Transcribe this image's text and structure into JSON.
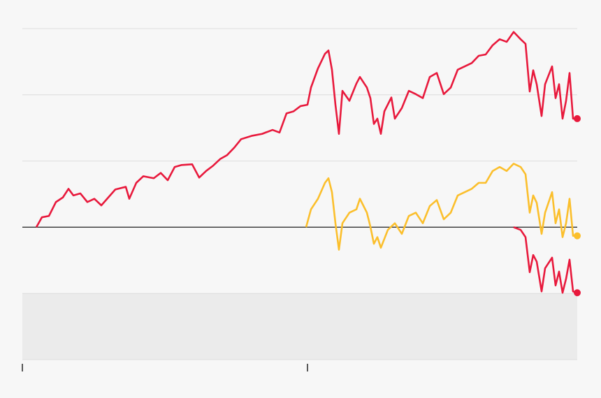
{
  "chart_data": {
    "type": "line",
    "xlim": [
      0,
      794
    ],
    "xticks": [
      0,
      408
    ],
    "ylim": [
      -20,
      30
    ],
    "yticks": [
      -20,
      -10,
      0,
      10,
      20,
      30
    ],
    "grid": true,
    "baseline": 0,
    "shade": [
      -20,
      -10
    ],
    "end_marker": true,
    "series": [
      {
        "color": "#e8193c",
        "x": [
          20,
          28,
          38,
          48,
          58,
          66,
          73,
          83,
          93,
          103,
          113,
          123,
          133,
          148,
          153,
          163,
          173,
          188,
          198,
          208,
          218,
          228,
          243,
          253,
          263,
          273,
          283,
          293,
          303,
          313,
          328,
          343,
          358,
          368,
          378,
          388,
          398,
          408,
          413,
          423,
          433,
          438,
          443,
          448,
          453,
          458,
          468,
          478,
          483,
          493,
          498,
          503,
          508,
          513,
          518,
          528,
          533,
          543,
          553,
          563,
          573,
          583,
          593,
          603,
          613,
          623,
          633,
          643,
          653,
          663,
          673,
          683,
          693,
          703,
          713,
          720,
          726,
          731,
          736,
          743,
          748,
          758,
          763,
          768,
          773,
          778,
          783,
          788,
          794
        ],
        "values": [
          0,
          1.5,
          1.7,
          3.8,
          4.5,
          5.8,
          4.8,
          5.1,
          3.8,
          4.3,
          3.3,
          4.5,
          5.7,
          6.1,
          4.3,
          6.7,
          7.7,
          7.4,
          8.2,
          7.1,
          9.1,
          9.4,
          9.5,
          7.5,
          8.5,
          9.3,
          10.3,
          10.9,
          12.0,
          13.3,
          13.8,
          14.1,
          14.7,
          14.3,
          17.2,
          17.5,
          18.3,
          18.5,
          21.1,
          24.0,
          26.2,
          26.7,
          23.8,
          18.5,
          14.1,
          20.6,
          19.1,
          21.7,
          22.7,
          21.1,
          19.5,
          15.6,
          16.4,
          14.1,
          17.5,
          19.6,
          16.4,
          18.0,
          20.6,
          20.1,
          19.5,
          22.7,
          23.3,
          20.1,
          21.1,
          23.8,
          24.3,
          24.8,
          25.9,
          26.1,
          27.5,
          28.4,
          28.0,
          29.5,
          28.4,
          27.7,
          20.5,
          23.7,
          21.6,
          16.8,
          21.6,
          24.3,
          19.5,
          21.6,
          16.4,
          19.1,
          23.3,
          16.4,
          16.4
        ]
      },
      {
        "color": "#fbbf2c",
        "x": [
          406,
          413,
          423,
          433,
          438,
          443,
          448,
          453,
          458,
          468,
          478,
          483,
          493,
          498,
          503,
          508,
          513,
          523,
          533,
          543,
          553,
          563,
          573,
          583,
          593,
          603,
          613,
          623,
          633,
          643,
          653,
          663,
          673,
          683,
          693,
          703,
          713,
          720,
          726,
          731,
          736,
          743,
          748,
          758,
          763,
          768,
          773,
          778,
          783,
          788,
          794
        ],
        "values": [
          0,
          2.7,
          4.3,
          6.7,
          7.4,
          5.3,
          0.6,
          -3.4,
          0.6,
          2.2,
          2.7,
          4.3,
          2.2,
          0.1,
          -2.5,
          -1.5,
          -3.1,
          -0.4,
          0.6,
          -1.0,
          1.7,
          2.2,
          0.6,
          3.2,
          4.1,
          1.2,
          2.2,
          4.8,
          5.3,
          5.8,
          6.7,
          6.7,
          8.5,
          9.1,
          8.5,
          9.6,
          9.1,
          8.0,
          2.2,
          4.8,
          3.7,
          -1.0,
          2.2,
          5.3,
          0.6,
          2.7,
          -1.5,
          0.6,
          4.3,
          -1.3,
          -1.3
        ]
      },
      {
        "color": "#e8193c",
        "x": [
          703,
          713,
          720,
          726,
          731,
          736,
          743,
          748,
          758,
          763,
          768,
          773,
          778,
          783,
          788,
          794
        ],
        "values": [
          0,
          -0.4,
          -1.5,
          -6.8,
          -4.2,
          -5.2,
          -9.7,
          -6.2,
          -4.6,
          -8.8,
          -6.7,
          -9.9,
          -7.8,
          -4.9,
          -9.7,
          -9.9
        ]
      }
    ]
  }
}
